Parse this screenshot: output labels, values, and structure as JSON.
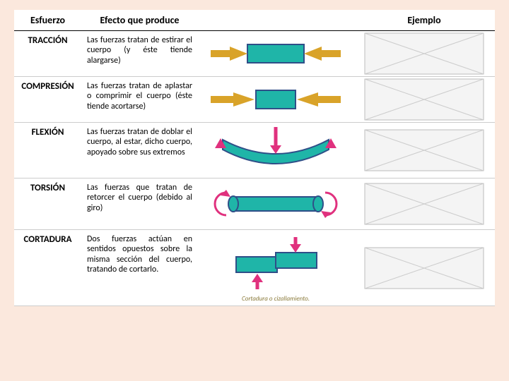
{
  "headers": {
    "effort": "Esfuerzo",
    "effect": "Efecto que produce",
    "diagram": "",
    "example": "Ejemplo"
  },
  "rows": [
    {
      "name": "TRACCIÓN",
      "desc": "Las fuerzas tratan de estirar el cuerpo (y éste tiende alargarse)",
      "diagram": {
        "type": "traction",
        "body_color": "#1fb5a8",
        "arrow_color": "#d9a329",
        "border_color": "#2f4f88"
      },
      "example_note": ""
    },
    {
      "name": "COMPRESIÓN",
      "desc": "Las fuerzas tratan de aplastar o comprimir el cuerpo (éste tiende acortarse)",
      "diagram": {
        "type": "compression",
        "body_color": "#1fb5a8",
        "arrow_color": "#d9a329",
        "border_color": "#2f4f88"
      },
      "example_note": ""
    },
    {
      "name": "FLEXIÓN",
      "desc": "Las fuerzas tratan de doblar el cuerpo, al estar, dicho cuerpo, apoyado sobre sus extremos",
      "diagram": {
        "type": "flexion",
        "body_color": "#1fb5a8",
        "arrow_color": "#e0317e",
        "border_color": "#2f4f88"
      },
      "example_note": ""
    },
    {
      "name": "TORSIÓN",
      "desc": "Las fuerzas que tratan de retorcer el cuerpo (debido al giro)",
      "diagram": {
        "type": "torsion",
        "body_color": "#1fb5a8",
        "arrow_color": "#e0317e",
        "border_color": "#2f4f88"
      },
      "example_note": ""
    },
    {
      "name": "CORTADURA",
      "desc": "Dos fuerzas actúan en sentidos opuestos sobre la misma sección del cuerpo, tratando de cortarlo.",
      "diagram": {
        "type": "shear",
        "body_color": "#1fb5a8",
        "arrow_color": "#e0317e",
        "border_color": "#2f4f88",
        "caption": "Cortadura o cizallamiento."
      },
      "example_note": ""
    }
  ],
  "colors": {
    "page_bg": "#fbe8dd",
    "header_underline": "#000000",
    "text": "#000000"
  }
}
